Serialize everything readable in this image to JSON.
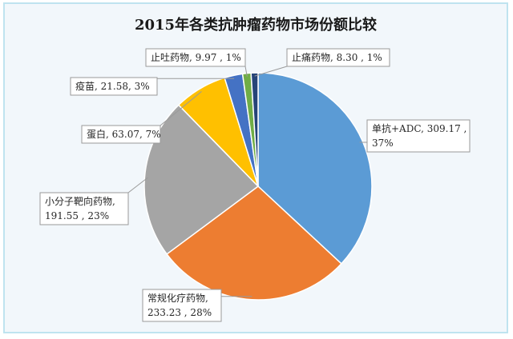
{
  "chart_data": {
    "type": "pie",
    "title": "2015年各类抗肿瘤药物市场份额比较",
    "slices": [
      {
        "label": "单抗+ADC",
        "value": 309.17,
        "percent": "37%",
        "color": "#5b9bd5"
      },
      {
        "label": "常规化疗药物",
        "value": 233.23,
        "percent": "28%",
        "color": "#ed7d31"
      },
      {
        "label": "小分子靶向药物",
        "value": 191.55,
        "percent": "23%",
        "color": "#a5a5a5"
      },
      {
        "label": "蛋白",
        "value": 63.07,
        "percent": "7%",
        "color": "#ffc000"
      },
      {
        "label": "疫苗",
        "value": 21.58,
        "percent": "3%",
        "color": "#4472c4"
      },
      {
        "label": "止吐药物",
        "value": 9.97,
        "percent": "1%",
        "color": "#70ad47"
      },
      {
        "label": "止痛药物",
        "value": 8.3,
        "percent": "1%",
        "color": "#264478"
      }
    ],
    "labels": [
      {
        "line1": "单抗+ADC, 309.17 ,",
        "line2": "37%"
      },
      {
        "line1": "常规化疗药物,",
        "line2": "233.23 , 28%"
      },
      {
        "line1": "小分子靶向药物,",
        "line2": "191.55 , 23%"
      },
      {
        "line1": "蛋白, 63.07, 7%",
        "line2": ""
      },
      {
        "line1": "疫苗, 21.58, 3%",
        "line2": ""
      },
      {
        "line1": "止吐药物, 9.97 , 1%",
        "line2": ""
      },
      {
        "line1": "止痛药物, 8.30 , 1%",
        "line2": ""
      }
    ],
    "legend": "none"
  }
}
